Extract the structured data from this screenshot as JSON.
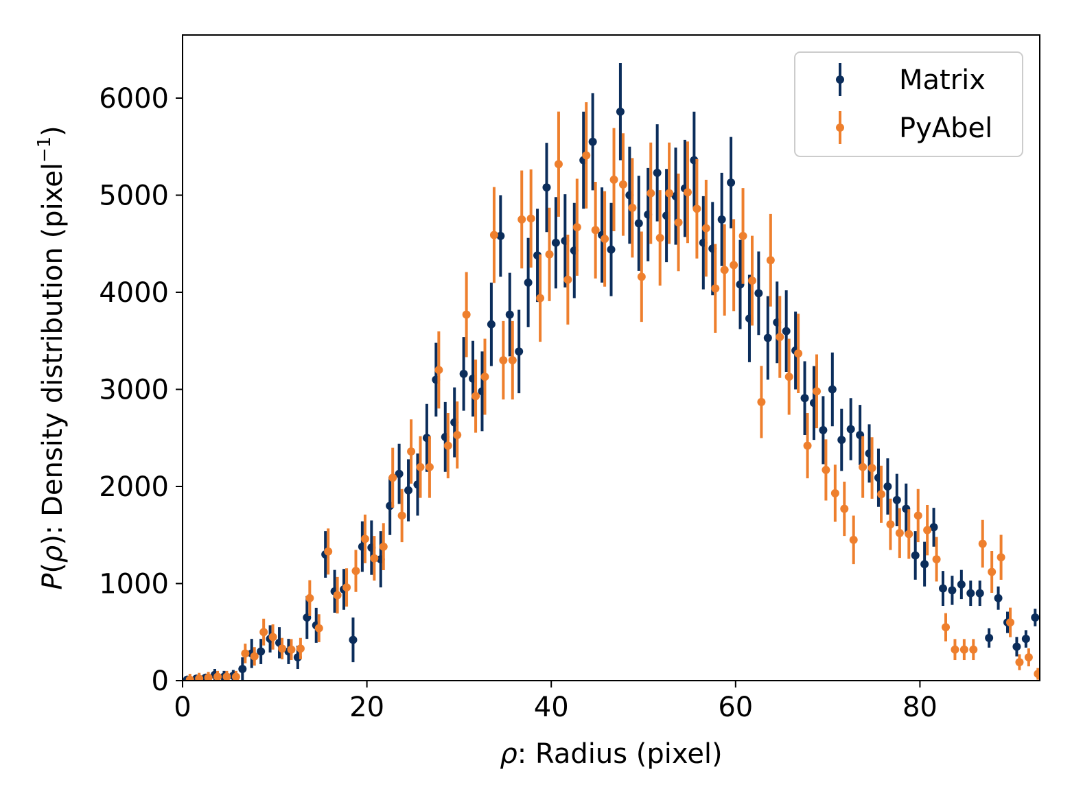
{
  "chart_data": {
    "type": "scatter",
    "title": "",
    "xlabel": {
      "symbol": "ρ",
      "rest": ": Radius (pixel)"
    },
    "ylabel": {
      "prefix": "P",
      "paren_open": "(",
      "symbol": "ρ",
      "paren_close": ")",
      "rest": ": Density distribution (pixel",
      "exponent": "−1",
      "close": ")"
    },
    "xlim": [
      0,
      93
    ],
    "ylim": [
      0,
      6650
    ],
    "xticks": [
      0,
      20,
      40,
      60,
      80
    ],
    "xtick_labels": [
      "0",
      "20",
      "40",
      "60",
      "80"
    ],
    "yticks": [
      0,
      1000,
      2000,
      3000,
      4000,
      5000,
      6000
    ],
    "ytick_labels": [
      "0",
      "1000",
      "2000",
      "3000",
      "4000",
      "5000",
      "6000"
    ],
    "legend_position": "top-right",
    "legend": [
      "Matrix",
      "PyAbel"
    ],
    "series": [
      {
        "name": "Matrix",
        "color": "#0b2d5b",
        "x": [
          0.5,
          1.5,
          2.5,
          3.5,
          4.5,
          5.5,
          6.5,
          7.5,
          8.5,
          9.5,
          10.5,
          11.5,
          12.5,
          13.5,
          14.5,
          15.5,
          16.5,
          17.5,
          18.5,
          19.5,
          20.5,
          21.5,
          22.5,
          23.5,
          24.5,
          25.5,
          26.5,
          27.5,
          28.5,
          29.5,
          30.5,
          31.5,
          32.5,
          33.5,
          34.5,
          35.5,
          36.5,
          37.5,
          38.5,
          39.5,
          40.5,
          41.5,
          42.5,
          43.5,
          44.5,
          45.5,
          46.5,
          47.5,
          48.5,
          49.5,
          50.5,
          51.5,
          52.5,
          53.5,
          54.5,
          55.5,
          56.5,
          57.5,
          58.5,
          59.5,
          60.5,
          61.5,
          62.5,
          63.5,
          64.5,
          65.5,
          66.5,
          67.5,
          68.5,
          69.5,
          70.5,
          71.5,
          72.5,
          73.5,
          74.5,
          75.5,
          76.5,
          77.5,
          78.5,
          79.5,
          80.5,
          81.5,
          82.5,
          83.5,
          84.5,
          85.5,
          86.5,
          87.5,
          88.5,
          89.5,
          90.5,
          91.5,
          92.5
        ],
        "y": [
          10,
          20,
          30,
          60,
          40,
          50,
          120,
          280,
          300,
          430,
          390,
          300,
          240,
          650,
          570,
          1300,
          920,
          940,
          420,
          1380,
          1370,
          1250,
          1800,
          2130,
          1960,
          2020,
          2500,
          3100,
          2510,
          2660,
          3160,
          3110,
          2980,
          3670,
          4580,
          3770,
          3390,
          4100,
          4380,
          5080,
          4510,
          4530,
          4430,
          5360,
          5550,
          4590,
          4440,
          5860,
          5000,
          4710,
          4800,
          5230,
          4790,
          4990,
          5070,
          5360,
          4510,
          4450,
          4750,
          5130,
          4080,
          3730,
          3990,
          3530,
          3690,
          3600,
          3400,
          2910,
          2860,
          2580,
          3000,
          2480,
          2590,
          2530,
          2340,
          2090,
          2000,
          1860,
          1770,
          1290,
          1200,
          1580,
          950,
          930,
          990,
          900,
          900,
          440,
          850,
          600,
          350,
          430,
          650
        ],
        "err": [
          20,
          30,
          40,
          60,
          60,
          60,
          120,
          150,
          130,
          140,
          160,
          130,
          120,
          220,
          180,
          240,
          220,
          210,
          230,
          260,
          280,
          290,
          300,
          310,
          320,
          320,
          350,
          380,
          360,
          360,
          380,
          390,
          410,
          430,
          420,
          430,
          430,
          460,
          480,
          460,
          470,
          480,
          490,
          500,
          500,
          490,
          480,
          500,
          500,
          490,
          480,
          500,
          480,
          500,
          500,
          500,
          480,
          480,
          480,
          470,
          460,
          450,
          430,
          430,
          420,
          420,
          400,
          380,
          380,
          350,
          380,
          320,
          320,
          310,
          300,
          300,
          290,
          270,
          260,
          250,
          230,
          200,
          180,
          150,
          150,
          130,
          130,
          100,
          120,
          110,
          100,
          90,
          90
        ]
      },
      {
        "name": "PyAbel",
        "color": "#ee7f2d",
        "x": [
          0.8,
          1.8,
          2.8,
          3.8,
          4.8,
          5.8,
          6.8,
          7.8,
          8.8,
          9.8,
          10.8,
          11.8,
          12.8,
          13.8,
          14.8,
          15.8,
          16.8,
          17.8,
          18.8,
          19.8,
          20.8,
          21.8,
          22.8,
          23.8,
          24.8,
          25.8,
          26.8,
          27.8,
          28.8,
          29.8,
          30.8,
          31.8,
          32.8,
          33.8,
          34.8,
          35.8,
          36.8,
          37.8,
          38.8,
          39.8,
          40.8,
          41.8,
          42.8,
          43.8,
          44.8,
          45.8,
          46.8,
          47.8,
          48.8,
          49.8,
          50.8,
          51.8,
          52.8,
          53.8,
          54.8,
          55.8,
          56.8,
          57.8,
          58.8,
          59.8,
          60.8,
          61.8,
          62.8,
          63.8,
          64.8,
          65.8,
          66.8,
          67.8,
          68.8,
          69.8,
          70.8,
          71.8,
          72.8,
          73.8,
          74.8,
          75.8,
          76.8,
          77.8,
          78.8,
          79.8,
          80.8,
          81.8,
          82.8,
          83.8,
          84.8,
          85.8,
          86.8,
          87.8,
          88.8,
          89.8,
          90.8,
          91.8,
          92.8
        ],
        "y": [
          10,
          20,
          30,
          40,
          40,
          40,
          280,
          250,
          500,
          450,
          330,
          320,
          330,
          850,
          540,
          1330,
          880,
          960,
          1130,
          1460,
          1260,
          1380,
          2090,
          1700,
          2360,
          2200,
          2200,
          3200,
          2420,
          2530,
          3770,
          2930,
          3130,
          4590,
          3300,
          3300,
          4750,
          4760,
          3940,
          4390,
          5320,
          4130,
          4670,
          5410,
          4640,
          4550,
          5160,
          5110,
          4870,
          4160,
          5020,
          4560,
          5020,
          4720,
          5030,
          4860,
          4660,
          4040,
          4230,
          4280,
          4580,
          4120,
          2870,
          4330,
          3540,
          3130,
          3370,
          2420,
          2980,
          2170,
          1930,
          1770,
          1450,
          2200,
          2190,
          1920,
          1610,
          1520,
          1510,
          1700,
          1550,
          1250,
          550,
          320,
          320,
          320,
          1410,
          1120,
          1270,
          600,
          190,
          240,
          70
        ]
      }
    ]
  }
}
